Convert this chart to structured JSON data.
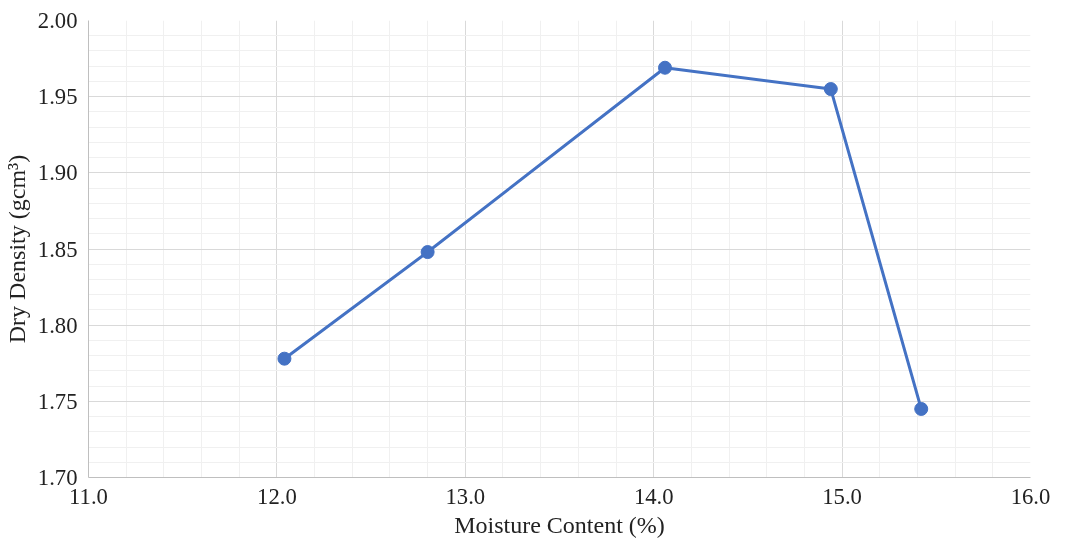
{
  "chart_data": {
    "type": "line",
    "xlabel": "Moisture Content (%)",
    "ylabel": "Dry Density (gcm³)",
    "x": [
      12.04,
      12.8,
      14.06,
      14.94,
      15.42
    ],
    "series": [
      {
        "color": "#4472c4",
        "values": [
          1.778,
          1.848,
          1.969,
          1.955,
          1.745
        ]
      }
    ],
    "xlim": [
      11.0,
      16.0
    ],
    "xticks": [
      {
        "value": 11,
        "label": "11.0"
      },
      {
        "value": 12,
        "label": "12.0"
      },
      {
        "value": 13,
        "label": "13.0"
      },
      {
        "value": 14,
        "label": "14.0"
      },
      {
        "value": 15,
        "label": "15.0"
      },
      {
        "value": 16,
        "label": "16.0"
      }
    ],
    "ylim": [
      1.7,
      2.0
    ],
    "yticks": [
      {
        "value": 1.7,
        "label": "1.70"
      },
      {
        "value": 1.75,
        "label": "1.75"
      },
      {
        "value": 1.8,
        "label": "1.80"
      },
      {
        "value": 1.85,
        "label": "1.85"
      },
      {
        "value": 1.9,
        "label": "1.90"
      },
      {
        "value": 1.95,
        "label": "1.95"
      },
      {
        "value": 2.0,
        "label": "2.00"
      }
    ],
    "grid": true,
    "marker": "circle",
    "line_style": "solid"
  }
}
